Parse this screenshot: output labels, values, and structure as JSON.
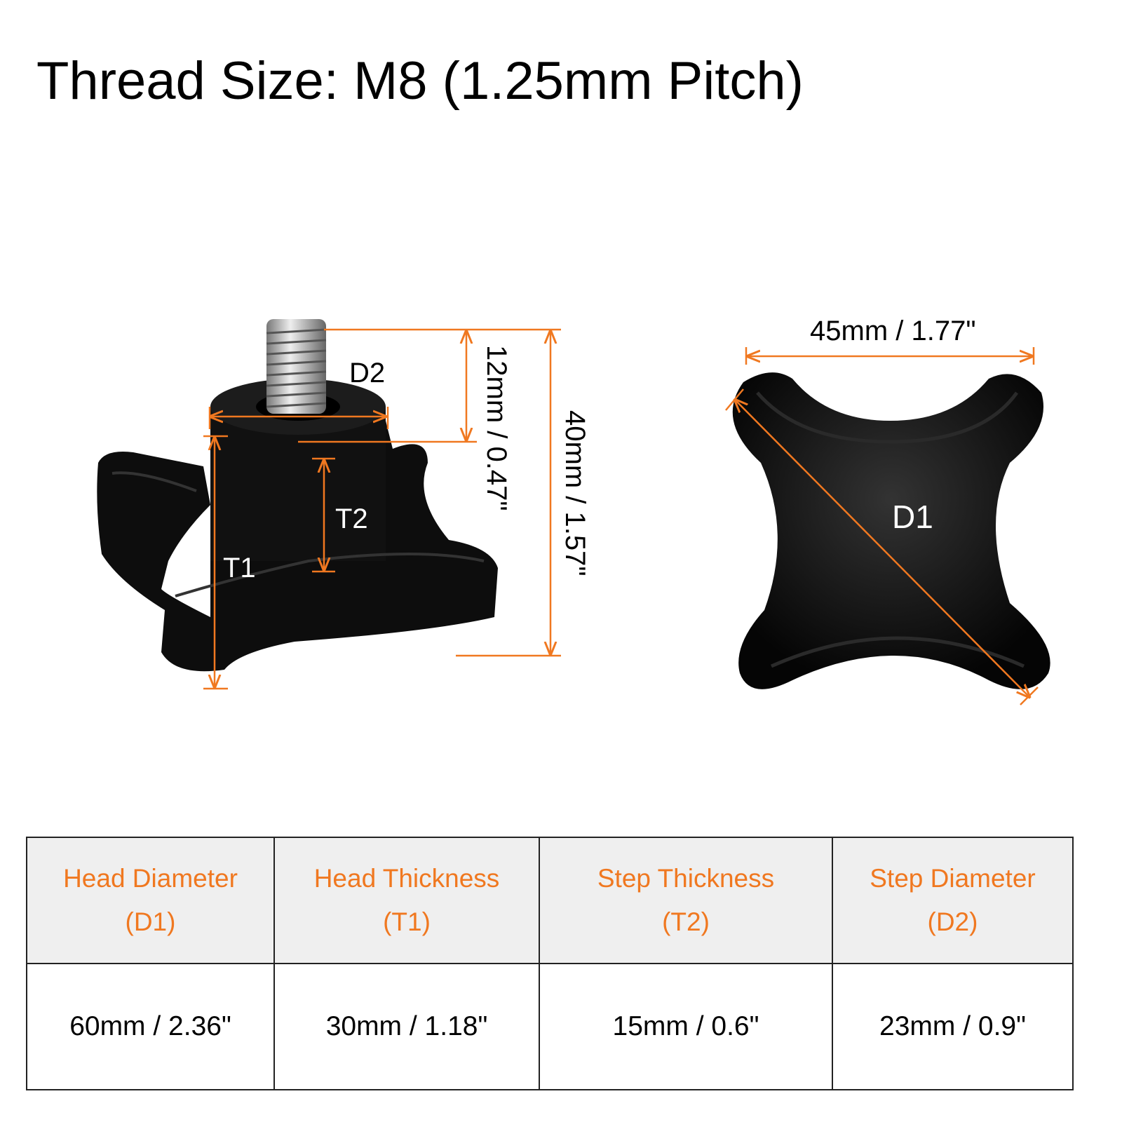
{
  "title": "Thread Size: M8 (1.25mm Pitch)",
  "colors": {
    "accent": "#f07820",
    "knob": "#0d0d0d",
    "header_bg": "#efefef"
  },
  "side_view": {
    "labels": {
      "d2": "D2",
      "t1": "T1",
      "t2": "T2"
    },
    "thread_length": "12mm / 0.47\"",
    "total_height": "40mm / 1.57\""
  },
  "top_view": {
    "width": "45mm / 1.77\"",
    "d1": "D1"
  },
  "table": {
    "headers": [
      {
        "line1": "Head Diameter",
        "line2": "(D1)"
      },
      {
        "line1": "Head Thickness",
        "line2": "(T1)"
      },
      {
        "line1": "Step Thickness",
        "line2": "(T2)"
      },
      {
        "line1": "Step Diameter",
        "line2": "(D2)"
      }
    ],
    "values": [
      "60mm / 2.36\"",
      "30mm / 1.18\"",
      "15mm / 0.6\"",
      "23mm / 0.9\""
    ]
  }
}
